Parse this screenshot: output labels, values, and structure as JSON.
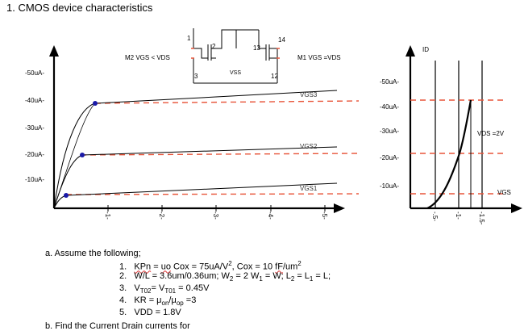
{
  "document": {
    "heading": "1.  CMOS device characteristics"
  },
  "schematic": {
    "m2_label": "M2  VGS < VDS",
    "m1_label": "M1  VGS =VDS",
    "vss_label": "VSS",
    "nodes": [
      "1",
      "2",
      "13",
      "14",
      "3",
      "12"
    ]
  },
  "colors": {
    "red_dashed": "#e8553a",
    "curve": "#000000",
    "dot": "#1a1aa8",
    "node_number": "#2a4d9a"
  },
  "chart_data": [
    {
      "type": "line",
      "title": "",
      "xlabel": "",
      "ylabel": "",
      "y_tick_labels": [
        "-50uA-",
        "-40uA-",
        "-30uA-",
        "-20uA-",
        "-10uA-"
      ],
      "x_tick_labels": [
        "-1-",
        "-2-",
        "-3-",
        "-4-",
        "-5-"
      ],
      "x": [
        1,
        2,
        3,
        4,
        5
      ],
      "ylim": [
        0,
        55
      ],
      "series": [
        {
          "name": "VGS3",
          "y": [
            40.1,
            40.8,
            41.6,
            42.4,
            43.0
          ]
        },
        {
          "name": "VGS2",
          "y": [
            20.0,
            20.6,
            21.2,
            21.8,
            22.5
          ]
        },
        {
          "name": "VGS1",
          "y": [
            4.6,
            5.3,
            6.1,
            6.9,
            7.5
          ]
        }
      ],
      "reference_levels_uA": [
        40,
        20,
        5
      ],
      "grid": false
    },
    {
      "type": "line",
      "title": "",
      "ylabel": "ID",
      "xlabel": "VGS",
      "annotation": "VDS =2V",
      "y_tick_labels": [
        "-50uA-",
        "-40uA-",
        "-30uA-",
        "-20uA-",
        "-10uA-"
      ],
      "x_tick_labels": [
        "-.5-",
        "-1-",
        "-1.5-"
      ],
      "x": [
        0.45,
        0.6,
        0.75,
        0.9,
        1.05,
        1.2,
        1.3
      ],
      "ylim": [
        0,
        55
      ],
      "series": [
        {
          "name": "",
          "y": [
            0,
            1.6,
            6.4,
            14.4,
            25.6,
            37.8,
            40
          ]
        }
      ],
      "vertical_markers_V": [
        0.5,
        1.0,
        1.3
      ],
      "grid": false
    }
  ],
  "question": {
    "part_a": "a.   Assume the following;",
    "items": [
      {
        "num": "1.",
        "pre": "",
        "kpn": "KPn",
        "eq": " = ",
        "uo": "uo",
        "rest": " Cox = 75uA/V",
        "sup": "2",
        "rest2": ", Cox = 10 ",
        "ff": "fF",
        "rest3": "/um",
        "sup2": "2"
      },
      {
        "num": "2.",
        "text": "W/L = 3.6um/0.36um;  W",
        "sub1": "2",
        "t2": " = 2 W",
        "sub2": "1",
        "t3": " = W;  L",
        "sub3": "2",
        "t4": " =  L",
        "sub4": "1",
        "t5": " = L;"
      },
      {
        "num": "3.",
        "text": "V",
        "sub1": "T02",
        "t2": "= V",
        "sub2": "T01",
        "t3": " = 0.45V"
      },
      {
        "num": "4.",
        "text": "KR = μ",
        "sub1": "on",
        "t2": "/μ",
        "sub2": "op",
        "t3": " =3"
      },
      {
        "num": "5.",
        "text": "VDD = 1.8V"
      }
    ],
    "part_b": "b.     Find  the  Current  Drain  currents  for"
  }
}
